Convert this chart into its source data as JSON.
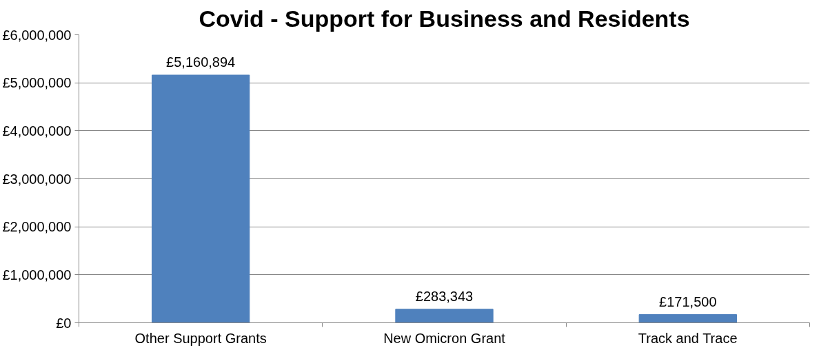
{
  "chart_data": {
    "type": "bar",
    "title": "Covid - Support for Business and Residents",
    "categories": [
      "Other Support Grants",
      "New Omicron Grant",
      "Track and Trace"
    ],
    "values": [
      5160894,
      283343,
      171500
    ],
    "color": "#4f81bd",
    "value_labels": [
      "£5,160,894",
      "£283,343",
      "£171,500"
    ],
    "ylim": [
      0,
      6000000
    ],
    "yticks": [
      {
        "value": 0,
        "label": "£0"
      },
      {
        "value": 1000000,
        "label": "£1,000,000"
      },
      {
        "value": 2000000,
        "label": "£2,000,000"
      },
      {
        "value": 3000000,
        "label": "£3,000,000"
      },
      {
        "value": 4000000,
        "label": "£4,000,000"
      },
      {
        "value": 5000000,
        "label": "£5,000,000"
      },
      {
        "value": 6000000,
        "label": "£6,000,000"
      }
    ],
    "grid": "y"
  }
}
